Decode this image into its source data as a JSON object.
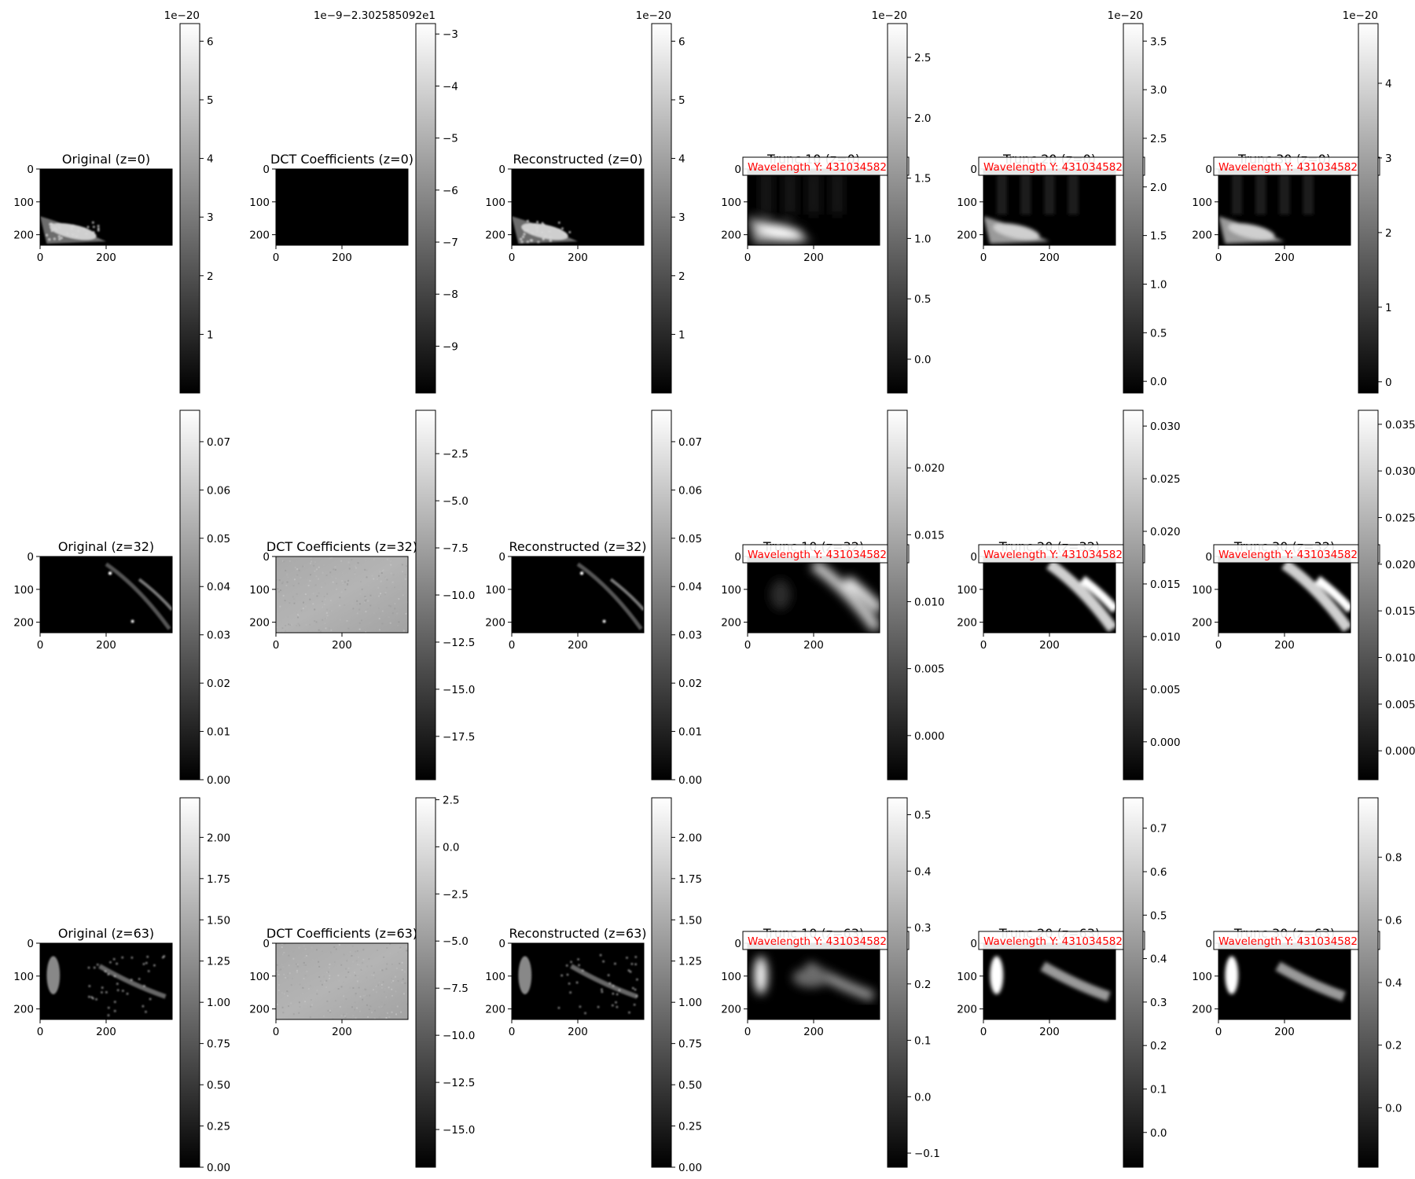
{
  "chart_data": {
    "type": "heatmap",
    "colormap": "gray",
    "grid": false,
    "rows": [
      {
        "z": 0,
        "panels": [
          {
            "title": "Original (z=0)",
            "image": "original",
            "cbar_ticks": [
              1,
              2,
              3,
              4,
              5,
              6
            ],
            "cbar_ticklabels": [
              "1",
              "2",
              "3",
              "4",
              "5",
              "6"
            ],
            "cbar_range": [
              0,
              6.3
            ],
            "cbar_offset": "1e−20"
          },
          {
            "title": "DCT Coefficients (z=0)",
            "image": "black",
            "cbar_ticks": [
              -9,
              -8,
              -7,
              -6,
              -5,
              -4,
              -3
            ],
            "cbar_ticklabels": [
              "−9",
              "−8",
              "−7",
              "−6",
              "−5",
              "−4",
              "−3"
            ],
            "cbar_range": [
              -9.9,
              -2.8
            ],
            "cbar_offset": "1e−9−2.302585092e1"
          },
          {
            "title": "Reconstructed (z=0)",
            "image": "original",
            "cbar_ticks": [
              1,
              2,
              3,
              4,
              5,
              6
            ],
            "cbar_ticklabels": [
              "1",
              "2",
              "3",
              "4",
              "5",
              "6"
            ],
            "cbar_range": [
              0,
              6.3
            ],
            "cbar_offset": "1e−20"
          },
          {
            "title": "Trunc 10 (z=0)",
            "image": "blur",
            "annotation": "Wavelength Y: 431034582",
            "cbar_ticks": [
              0,
              0.5,
              1,
              1.5,
              2,
              2.5
            ],
            "cbar_ticklabels": [
              "0.0",
              "0.5",
              "1.0",
              "1.5",
              "2.0",
              "2.5"
            ],
            "cbar_range": [
              -0.28,
              2.78
            ],
            "cbar_offset": "1e−20"
          },
          {
            "title": "Trunc 20 (z=0)",
            "image": "blur",
            "annotation": "Wavelength Y: 431034582",
            "cbar_ticks": [
              0,
              0.5,
              1,
              1.5,
              2,
              2.5,
              3,
              3.5
            ],
            "cbar_ticklabels": [
              "0.0",
              "0.5",
              "1.0",
              "1.5",
              "2.0",
              "2.5",
              "3.0",
              "3.5"
            ],
            "cbar_range": [
              -0.12,
              3.68
            ],
            "cbar_offset": "1e−20"
          },
          {
            "title": "Trunc 30 (z=0)",
            "image": "blur",
            "annotation": "Wavelength Y: 431034582",
            "cbar_ticks": [
              0,
              1,
              2,
              3,
              4
            ],
            "cbar_ticklabels": [
              "0",
              "1",
              "2",
              "3",
              "4"
            ],
            "cbar_range": [
              -0.15,
              4.8
            ],
            "cbar_offset": "1e−20"
          }
        ]
      },
      {
        "z": 32,
        "panels": [
          {
            "title": "Original (z=32)",
            "image": "original",
            "cbar_ticks": [
              0,
              0.01,
              0.02,
              0.03,
              0.04,
              0.05,
              0.06,
              0.07
            ],
            "cbar_ticklabels": [
              "0.00",
              "0.01",
              "0.02",
              "0.03",
              "0.04",
              "0.05",
              "0.06",
              "0.07"
            ],
            "cbar_range": [
              0,
              0.0765
            ],
            "cbar_offset": ""
          },
          {
            "title": "DCT Coefficients (z=32)",
            "image": "noise",
            "cbar_ticks": [
              -17.5,
              -15,
              -12.5,
              -10,
              -7.5,
              -5,
              -2.5
            ],
            "cbar_ticklabels": [
              "−17.5",
              "−15.0",
              "−12.5",
              "−10.0",
              "−7.5",
              "−5.0",
              "−2.5"
            ],
            "cbar_range": [
              -19.8,
              -0.2
            ],
            "cbar_offset": ""
          },
          {
            "title": "Reconstructed (z=32)",
            "image": "original",
            "cbar_ticks": [
              0,
              0.01,
              0.02,
              0.03,
              0.04,
              0.05,
              0.06,
              0.07
            ],
            "cbar_ticklabels": [
              "0.00",
              "0.01",
              "0.02",
              "0.03",
              "0.04",
              "0.05",
              "0.06",
              "0.07"
            ],
            "cbar_range": [
              0,
              0.0765
            ],
            "cbar_offset": ""
          },
          {
            "title": "Trunc 10 (z=32)",
            "image": "blur",
            "annotation": "Wavelength Y: 431034582",
            "cbar_ticks": [
              0,
              0.005,
              0.01,
              0.015,
              0.02
            ],
            "cbar_ticklabels": [
              "0.000",
              "0.005",
              "0.010",
              "0.015",
              "0.020"
            ],
            "cbar_range": [
              -0.0033,
              0.0243
            ],
            "cbar_offset": ""
          },
          {
            "title": "Trunc 20 (z=32)",
            "image": "blur",
            "annotation": "Wavelength Y: 431034582",
            "cbar_ticks": [
              0,
              0.005,
              0.01,
              0.015,
              0.02,
              0.025,
              0.03
            ],
            "cbar_ticklabels": [
              "0.000",
              "0.005",
              "0.010",
              "0.015",
              "0.020",
              "0.025",
              "0.030"
            ],
            "cbar_range": [
              -0.0036,
              0.0315
            ],
            "cbar_offset": ""
          },
          {
            "title": "Trunc 30 (z=32)",
            "image": "blur",
            "annotation": "Wavelength Y: 431034582",
            "cbar_ticks": [
              0,
              0.005,
              0.01,
              0.015,
              0.02,
              0.025,
              0.03,
              0.035
            ],
            "cbar_ticklabels": [
              "0.000",
              "0.005",
              "0.010",
              "0.015",
              "0.020",
              "0.025",
              "0.030",
              "0.035"
            ],
            "cbar_range": [
              -0.0031,
              0.0365
            ],
            "cbar_offset": ""
          }
        ]
      },
      {
        "z": 63,
        "panels": [
          {
            "title": "Original (z=63)",
            "image": "original",
            "cbar_ticks": [
              0,
              0.25,
              0.5,
              0.75,
              1,
              1.25,
              1.5,
              1.75,
              2
            ],
            "cbar_ticklabels": [
              "0.00",
              "0.25",
              "0.50",
              "0.75",
              "1.00",
              "1.25",
              "1.50",
              "1.75",
              "2.00"
            ],
            "cbar_range": [
              0,
              2.24
            ],
            "cbar_offset": ""
          },
          {
            "title": "DCT Coefficients (z=63)",
            "image": "noise",
            "cbar_ticks": [
              -15,
              -12.5,
              -10,
              -7.5,
              -5,
              -2.5,
              0,
              2.5
            ],
            "cbar_ticklabels": [
              "−15.0",
              "−12.5",
              "−10.0",
              "−7.5",
              "−5.0",
              "−2.5",
              "0.0",
              "2.5"
            ],
            "cbar_range": [
              -17,
              2.6
            ],
            "cbar_offset": ""
          },
          {
            "title": "Reconstructed (z=63)",
            "image": "original",
            "cbar_ticks": [
              0,
              0.25,
              0.5,
              0.75,
              1,
              1.25,
              1.5,
              1.75,
              2
            ],
            "cbar_ticklabels": [
              "0.00",
              "0.25",
              "0.50",
              "0.75",
              "1.00",
              "1.25",
              "1.50",
              "1.75",
              "2.00"
            ],
            "cbar_range": [
              0,
              2.24
            ],
            "cbar_offset": ""
          },
          {
            "title": "Trunc 10 (z=63)",
            "image": "blur",
            "annotation": "Wavelength Y: 431034582",
            "cbar_ticks": [
              -0.1,
              0,
              0.1,
              0.2,
              0.3,
              0.4,
              0.5
            ],
            "cbar_ticklabels": [
              "−0.1",
              "0.0",
              "0.1",
              "0.2",
              "0.3",
              "0.4",
              "0.5"
            ],
            "cbar_range": [
              -0.125,
              0.53
            ],
            "cbar_offset": ""
          },
          {
            "title": "Trunc 20 (z=63)",
            "image": "blur",
            "annotation": "Wavelength Y: 431034582",
            "cbar_ticks": [
              0,
              0.1,
              0.2,
              0.3,
              0.4,
              0.5,
              0.6,
              0.7
            ],
            "cbar_ticklabels": [
              "0.0",
              "0.1",
              "0.2",
              "0.3",
              "0.4",
              "0.5",
              "0.6",
              "0.7"
            ],
            "cbar_range": [
              -0.08,
              0.77
            ],
            "cbar_offset": ""
          },
          {
            "title": "Trunc 30 (z=63)",
            "image": "blur",
            "annotation": "Wavelength Y: 431034582",
            "cbar_ticks": [
              0,
              0.2,
              0.4,
              0.6,
              0.8
            ],
            "cbar_ticklabels": [
              "0.0",
              "0.2",
              "0.4",
              "0.6",
              "0.8"
            ],
            "cbar_range": [
              -0.19,
              0.99
            ],
            "cbar_offset": ""
          }
        ]
      }
    ],
    "image_x_ticks": [
      0,
      200
    ],
    "image_x_ticklabels": [
      "0",
      "200"
    ],
    "image_y_ticks": [
      0,
      100,
      200
    ],
    "image_y_ticklabels": [
      "0",
      "100",
      "200"
    ],
    "image_x_range": [
      0,
      400
    ],
    "image_y_range": [
      0,
      232
    ]
  }
}
